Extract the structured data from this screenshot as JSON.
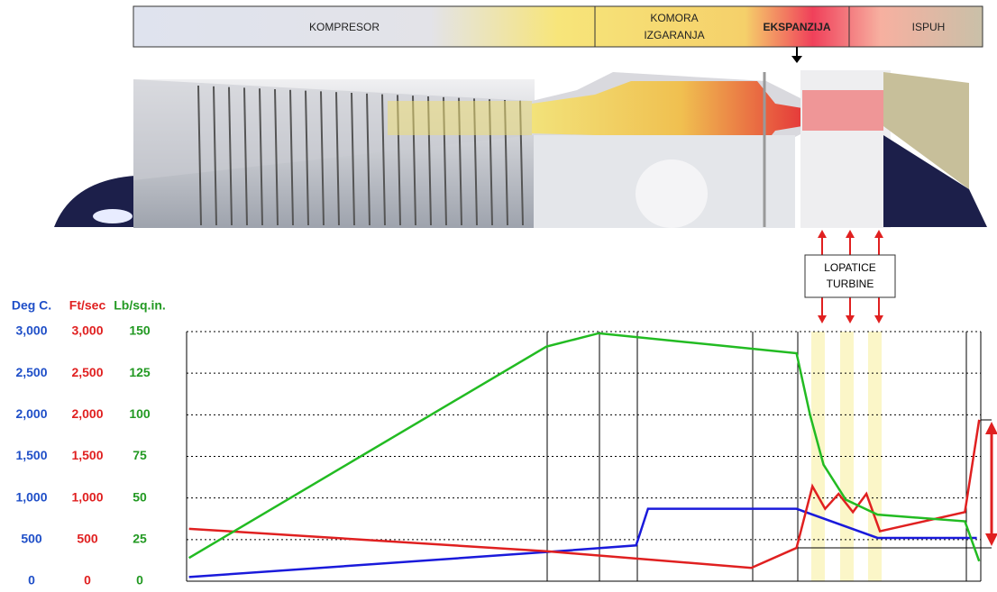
{
  "banner": {
    "compressor": "KOMPRESOR",
    "combustion": [
      "KOMORA",
      "IZGARANJA"
    ],
    "expansion": "EKSPANZIJA",
    "exhaust": "ISPUH"
  },
  "turbine_note": [
    "LOPATICE",
    "TURBINE"
  ],
  "chart_data": {
    "type": "line",
    "xlim": [
      0,
      100
    ],
    "grid": true,
    "axes": [
      {
        "name": "Deg C.",
        "color": "#1f4fc8",
        "ylim": [
          0,
          3000
        ],
        "yticks": [
          0,
          500,
          {
            "value": 1000,
            "label": "1,000"
          },
          {
            "value": 1500,
            "label": "1,500"
          },
          {
            "value": 2000,
            "label": "2,000"
          },
          {
            "value": 2500,
            "label": "2,500"
          },
          {
            "value": 3000,
            "label": "3,000"
          }
        ]
      },
      {
        "name": "Ft/sec",
        "color": "#e02020",
        "ylim": [
          0,
          3000
        ],
        "yticks": [
          0,
          500,
          {
            "value": 1000,
            "label": "1,000"
          },
          {
            "value": 1500,
            "label": "1,500"
          },
          {
            "value": 2000,
            "label": "2,000"
          },
          {
            "value": 2500,
            "label": "2,500"
          },
          {
            "value": 3000,
            "label": "3,000"
          }
        ]
      },
      {
        "name": "Lb/sq.in.",
        "color": "#229922",
        "ylim": [
          0,
          150
        ],
        "yticks": [
          0,
          25,
          50,
          75,
          100,
          125,
          150
        ]
      }
    ],
    "series": [
      {
        "axis": 0,
        "color": "#1a1adb",
        "x": [
          0.3,
          45.3,
          56.6,
          58.1,
          76.8,
          87.0,
          99.5
        ],
        "values": [
          50,
          350,
          430,
          870,
          870,
          520,
          520
        ]
      },
      {
        "axis": 1,
        "color": "#e02020",
        "x": [
          0.3,
          45.3,
          71.1,
          76.8,
          78.8,
          80.4,
          82.1,
          83.9,
          85.6,
          87.3,
          98.0,
          99.8
        ],
        "values": [
          630,
          360,
          160,
          400,
          1140,
          870,
          1050,
          830,
          1050,
          600,
          830,
          1940
        ]
      },
      {
        "axis": 2,
        "color": "#22bb22",
        "x": [
          0.3,
          45.3,
          51.9,
          76.8,
          78.5,
          80.2,
          83.0,
          87.0,
          98.0,
          99.8
        ],
        "values": [
          14,
          141,
          149,
          137,
          100,
          70,
          49,
          40,
          36,
          12
        ]
      }
    ]
  }
}
